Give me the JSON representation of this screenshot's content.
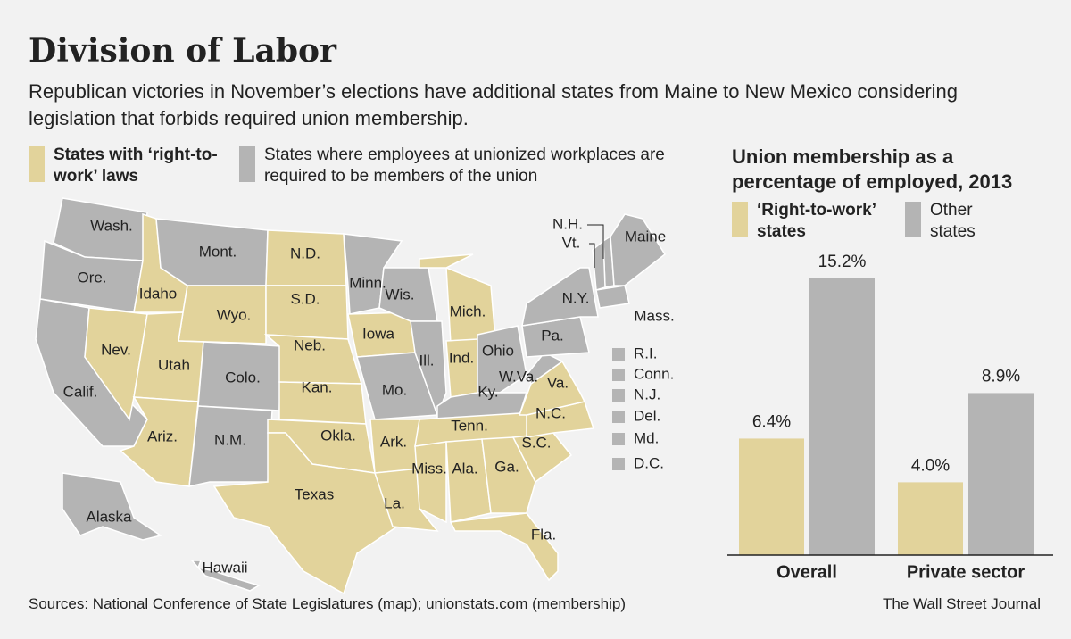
{
  "header": {
    "title": "Division of Labor",
    "subtitle": "Republican victories in November’s elections have additional states from Maine to New Mexico considering legislation that forbids required union membership."
  },
  "map": {
    "legend": [
      {
        "label": "States with ‘right-to-work’ laws",
        "color": "#e2d39b"
      },
      {
        "label": "States where employees at unionized workplaces are required to be members of the union",
        "color": "#b4b4b4"
      }
    ],
    "states": [
      {
        "label": "Wash.",
        "right_to_work": false
      },
      {
        "label": "Ore.",
        "right_to_work": false
      },
      {
        "label": "Calif.",
        "right_to_work": false
      },
      {
        "label": "Nev.",
        "right_to_work": true
      },
      {
        "label": "Idaho",
        "right_to_work": true
      },
      {
        "label": "Mont.",
        "right_to_work": false
      },
      {
        "label": "Wyo.",
        "right_to_work": true
      },
      {
        "label": "Utah",
        "right_to_work": true
      },
      {
        "label": "Ariz.",
        "right_to_work": true
      },
      {
        "label": "Colo.",
        "right_to_work": false
      },
      {
        "label": "N.M.",
        "right_to_work": false
      },
      {
        "label": "N.D.",
        "right_to_work": true
      },
      {
        "label": "S.D.",
        "right_to_work": true
      },
      {
        "label": "Neb.",
        "right_to_work": true
      },
      {
        "label": "Kan.",
        "right_to_work": true
      },
      {
        "label": "Okla.",
        "right_to_work": true
      },
      {
        "label": "Texas",
        "right_to_work": true
      },
      {
        "label": "Minn.",
        "right_to_work": false
      },
      {
        "label": "Iowa",
        "right_to_work": true
      },
      {
        "label": "Mo.",
        "right_to_work": false
      },
      {
        "label": "Ark.",
        "right_to_work": true
      },
      {
        "label": "La.",
        "right_to_work": true
      },
      {
        "label": "Wis.",
        "right_to_work": false
      },
      {
        "label": "Ill.",
        "right_to_work": false
      },
      {
        "label": "Mich.",
        "right_to_work": true
      },
      {
        "label": "Ind.",
        "right_to_work": true
      },
      {
        "label": "Ohio",
        "right_to_work": false
      },
      {
        "label": "Ky.",
        "right_to_work": false
      },
      {
        "label": "Tenn.",
        "right_to_work": true
      },
      {
        "label": "Miss.",
        "right_to_work": true
      },
      {
        "label": "Ala.",
        "right_to_work": true
      },
      {
        "label": "Ga.",
        "right_to_work": true
      },
      {
        "label": "Fla.",
        "right_to_work": true
      },
      {
        "label": "S.C.",
        "right_to_work": true
      },
      {
        "label": "N.C.",
        "right_to_work": true
      },
      {
        "label": "Va.",
        "right_to_work": true
      },
      {
        "label": "W.Va.",
        "right_to_work": false
      },
      {
        "label": "Pa.",
        "right_to_work": false
      },
      {
        "label": "N.Y.",
        "right_to_work": false
      },
      {
        "label": "N.H.",
        "right_to_work": false
      },
      {
        "label": "Vt.",
        "right_to_work": false
      },
      {
        "label": "Maine",
        "right_to_work": false
      },
      {
        "label": "Mass.",
        "right_to_work": false
      },
      {
        "label": "Alaska",
        "right_to_work": false
      },
      {
        "label": "Hawaii",
        "right_to_work": false
      },
      {
        "label": "R.I.",
        "right_to_work": false
      },
      {
        "label": "Conn.",
        "right_to_work": false
      },
      {
        "label": "N.J.",
        "right_to_work": false
      },
      {
        "label": "Del.",
        "right_to_work": false
      },
      {
        "label": "Md.",
        "right_to_work": false
      },
      {
        "label": "D.C.",
        "right_to_work": false
      }
    ]
  },
  "chart_data": {
    "type": "bar",
    "title": "Union membership as a percentage of employed, 2013",
    "categories": [
      "Overall",
      "Private sector"
    ],
    "series": [
      {
        "name": "‘Right-to-work’ states",
        "color": "#e2d39b",
        "values": [
          6.4,
          4.0
        ],
        "value_labels": [
          "6.4%",
          "4.0%"
        ]
      },
      {
        "name": "Other states",
        "color": "#b4b4b4",
        "values": [
          15.2,
          8.9
        ],
        "value_labels": [
          "15.2%",
          "8.9%"
        ]
      }
    ]
  },
  "footer": {
    "source": "Sources: National Conference of State Legislatures (map); unionstats.com (membership)",
    "credit": "The Wall Street Journal"
  }
}
